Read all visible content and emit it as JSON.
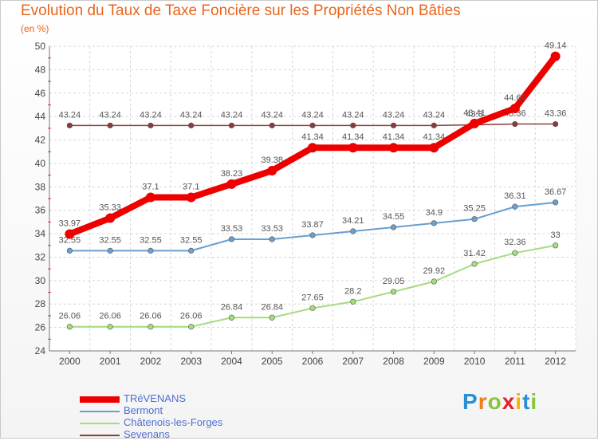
{
  "title": "Evolution du Taux de Taxe Foncière sur les Propriétés Non Bâties",
  "subtitle": "(en %)",
  "logo": "Proxiti",
  "chart_data": {
    "type": "line",
    "title": "Evolution du Taux de Taxe Foncière sur les Propriétés Non Bâties",
    "ylabel": "(en %)",
    "xlabel": "",
    "ylim": [
      24,
      50
    ],
    "yticks": [
      24,
      26,
      28,
      30,
      32,
      34,
      36,
      38,
      40,
      42,
      44,
      46,
      48,
      50
    ],
    "categories": [
      "2000",
      "2001",
      "2002",
      "2003",
      "2004",
      "2005",
      "2006",
      "2007",
      "2008",
      "2009",
      "2010",
      "2011",
      "2012"
    ],
    "grid": true,
    "series": [
      {
        "name": "TRéVENANS",
        "color": "#ee0000",
        "values": [
          33.97,
          35.33,
          37.1,
          37.1,
          38.23,
          39.38,
          41.34,
          41.34,
          41.34,
          41.34,
          43.41,
          44.69,
          49.14
        ],
        "labels": [
          "33.97",
          "35.33",
          "37.1",
          "37.1",
          "38.23",
          "39.38",
          "41.34",
          "41.34",
          "41.34",
          "41.34",
          "43.41",
          "44.69",
          "49.14"
        ]
      },
      {
        "name": "Bermont",
        "color": "#6a9fd0",
        "values": [
          32.55,
          32.55,
          32.55,
          32.55,
          33.53,
          33.53,
          33.87,
          34.21,
          34.55,
          34.9,
          35.25,
          36.31,
          36.67
        ],
        "labels": [
          "32.55",
          "32.55",
          "32.55",
          "32.55",
          "33.53",
          "33.53",
          "33.87",
          "34.21",
          "34.55",
          "34.9",
          "35.25",
          "36.31",
          "36.67"
        ]
      },
      {
        "name": "Châtenois-les-Forges",
        "color": "#a6db7e",
        "values": [
          26.06,
          26.06,
          26.06,
          26.06,
          26.84,
          26.84,
          27.65,
          28.2,
          29.05,
          29.92,
          31.42,
          32.36,
          33
        ],
        "labels": [
          "26.06",
          "26.06",
          "26.06",
          "26.06",
          "26.84",
          "26.84",
          "27.65",
          "28.2",
          "29.05",
          "29.92",
          "31.42",
          "32.36",
          "33"
        ]
      },
      {
        "name": "Sevenans",
        "color": "#8a3b3b",
        "values": [
          43.24,
          43.24,
          43.24,
          43.24,
          43.24,
          43.24,
          43.24,
          43.24,
          43.24,
          43.24,
          43.3,
          43.36,
          43.36
        ],
        "labels": [
          "43.24",
          "43.24",
          "43.24",
          "43.24",
          "43.24",
          "43.24",
          "43.24",
          "43.24",
          "43.24",
          "43.24",
          "43.3",
          "43.36",
          "43.36"
        ]
      }
    ],
    "legend_position": "bottom-left"
  }
}
